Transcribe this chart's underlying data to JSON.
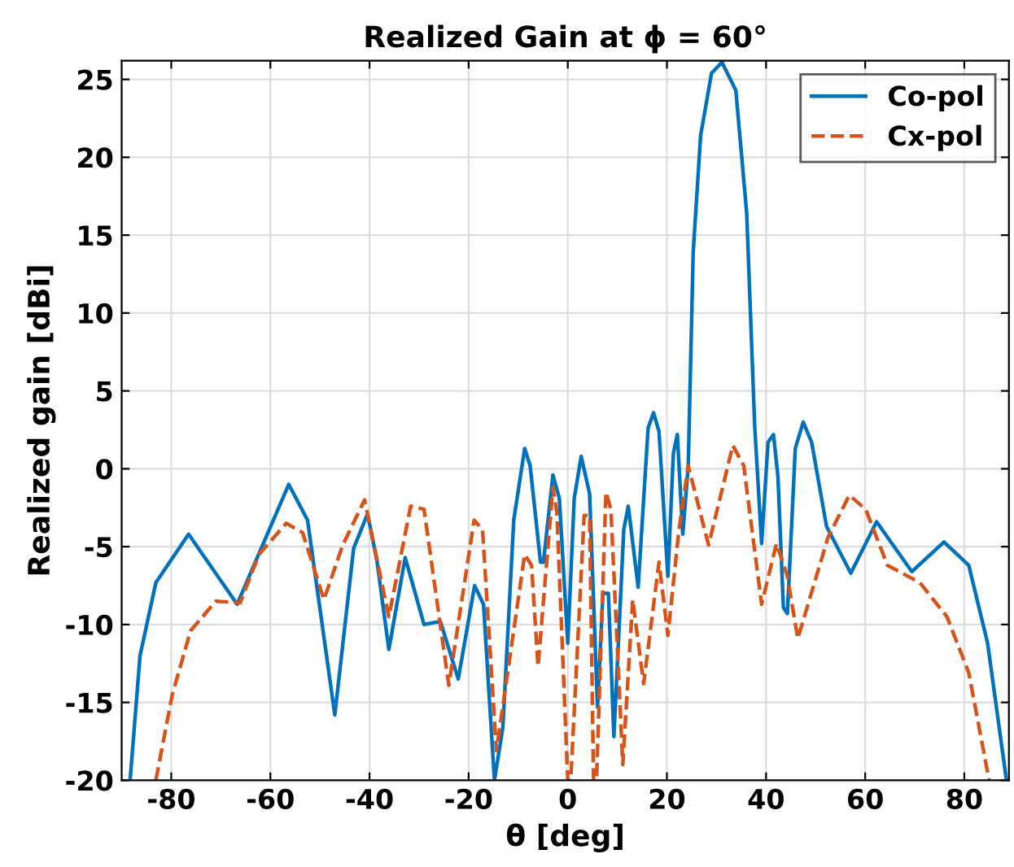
{
  "chart_data": {
    "type": "line",
    "title": "Realized Gain at ϕ = 60°",
    "xlabel": "θ [deg]",
    "ylabel": "Realized gain [dBi]",
    "xlim": [
      -90,
      89
    ],
    "ylim": [
      -20,
      26.2
    ],
    "xticks": [
      -80,
      -60,
      -40,
      -20,
      0,
      20,
      40,
      60,
      80
    ],
    "yticks": [
      -20,
      -15,
      -10,
      -5,
      0,
      5,
      10,
      15,
      20,
      25
    ],
    "grid": true,
    "legend": "top right",
    "series": [
      {
        "name": "Co-pol",
        "color": "#0072bd",
        "line_style": "solid",
        "x": [
          -88.3,
          -86.3,
          -83.1,
          -76.5,
          -66.7,
          -56.3,
          -52.5,
          -47,
          -43.2,
          -40.4,
          -38.5,
          -36.1,
          -32.8,
          -29,
          -25.7,
          -22.1,
          -18.8,
          -17,
          -14.8,
          -13.1,
          -10.9,
          -8.7,
          -7.6,
          -5.5,
          -4.9,
          -3.0,
          -1.7,
          0,
          1.3,
          2.7,
          4.4,
          6.0,
          7.1,
          8.2,
          9.3,
          11.3,
          12.2,
          14.2,
          16.2,
          17.3,
          18.4,
          20.2,
          21.3,
          22.1,
          23.2,
          24.3,
          25.3,
          26.8,
          29.0,
          31.1,
          33.9,
          36.1,
          37.7,
          39.1,
          40.4,
          41.5,
          42.4,
          43.5,
          44.3,
          45.9,
          47.5,
          49.2,
          52.2,
          57.1,
          62.3,
          69.4,
          75.9,
          80.9,
          84.7,
          88.5
        ],
        "values": [
          -20,
          -12.0,
          -7.3,
          -4.2,
          -8.7,
          -1.0,
          -3.3,
          -15.8,
          -5.1,
          -2.9,
          -5.9,
          -11.6,
          -5.7,
          -10.0,
          -9.8,
          -13.5,
          -7.5,
          -8.7,
          -20,
          -16.6,
          -3.3,
          1.3,
          0.2,
          -6.0,
          -6.0,
          -0.4,
          -1.9,
          -11.2,
          -1.9,
          0.8,
          -1.6,
          -15.3,
          -8.0,
          -8.0,
          -17.2,
          -3.9,
          -2.4,
          -7.6,
          2.6,
          3.6,
          2.4,
          -6.9,
          1.0,
          2.2,
          -4.2,
          0.2,
          13.9,
          21.4,
          25.4,
          26.1,
          24.3,
          16.4,
          2.8,
          -4.8,
          1.7,
          2.2,
          -0.5,
          -8.9,
          -9.3,
          1.3,
          3.0,
          1.7,
          -3.7,
          -6.7,
          -3.4,
          -6.6,
          -4.7,
          -6.2,
          -11.2,
          -20
        ]
      },
      {
        "name": "Cx-pol",
        "color": "#d95319",
        "line_style": "dashed",
        "x": [
          -83.1,
          -79.8,
          -76.1,
          -71,
          -66.1,
          -62.3,
          -56.8,
          -53.5,
          -49.2,
          -45.4,
          -41,
          -36.1,
          -31.7,
          -29,
          -24,
          -18.9,
          -17.2,
          -14.4,
          -8.7,
          -7.3,
          -6.0,
          -3.0,
          -2.2,
          0,
          0.6,
          3.3,
          4.4,
          5.2,
          5.8,
          7.7,
          8.7,
          11.1,
          13.1,
          15.3,
          18.4,
          20.2,
          22.4,
          24.3,
          28.4,
          33.3,
          35.5,
          39.1,
          42.1,
          44.3,
          46.4,
          52.5,
          56.8,
          60.1,
          64.5,
          71.0,
          76.5,
          80.9,
          85.0
        ],
        "values": [
          -20,
          -14.5,
          -10.4,
          -8.5,
          -8.6,
          -5.5,
          -3.5,
          -4.1,
          -8.4,
          -4.9,
          -2.0,
          -9.5,
          -2.4,
          -2.6,
          -13.9,
          -3.3,
          -3.9,
          -18.1,
          -5.5,
          -6.2,
          -12.7,
          -1.2,
          -2.8,
          -20,
          -20,
          -3.0,
          -3.0,
          -20,
          -20,
          -1.5,
          -2.6,
          -19.0,
          -8.4,
          -13.8,
          -6.0,
          -10.7,
          -4.0,
          0.2,
          -4.9,
          1.5,
          0.2,
          -8.7,
          -4.8,
          -6.9,
          -10.9,
          -4.4,
          -1.7,
          -2.6,
          -6.2,
          -7.3,
          -9.5,
          -13.1,
          -20
        ]
      }
    ]
  }
}
